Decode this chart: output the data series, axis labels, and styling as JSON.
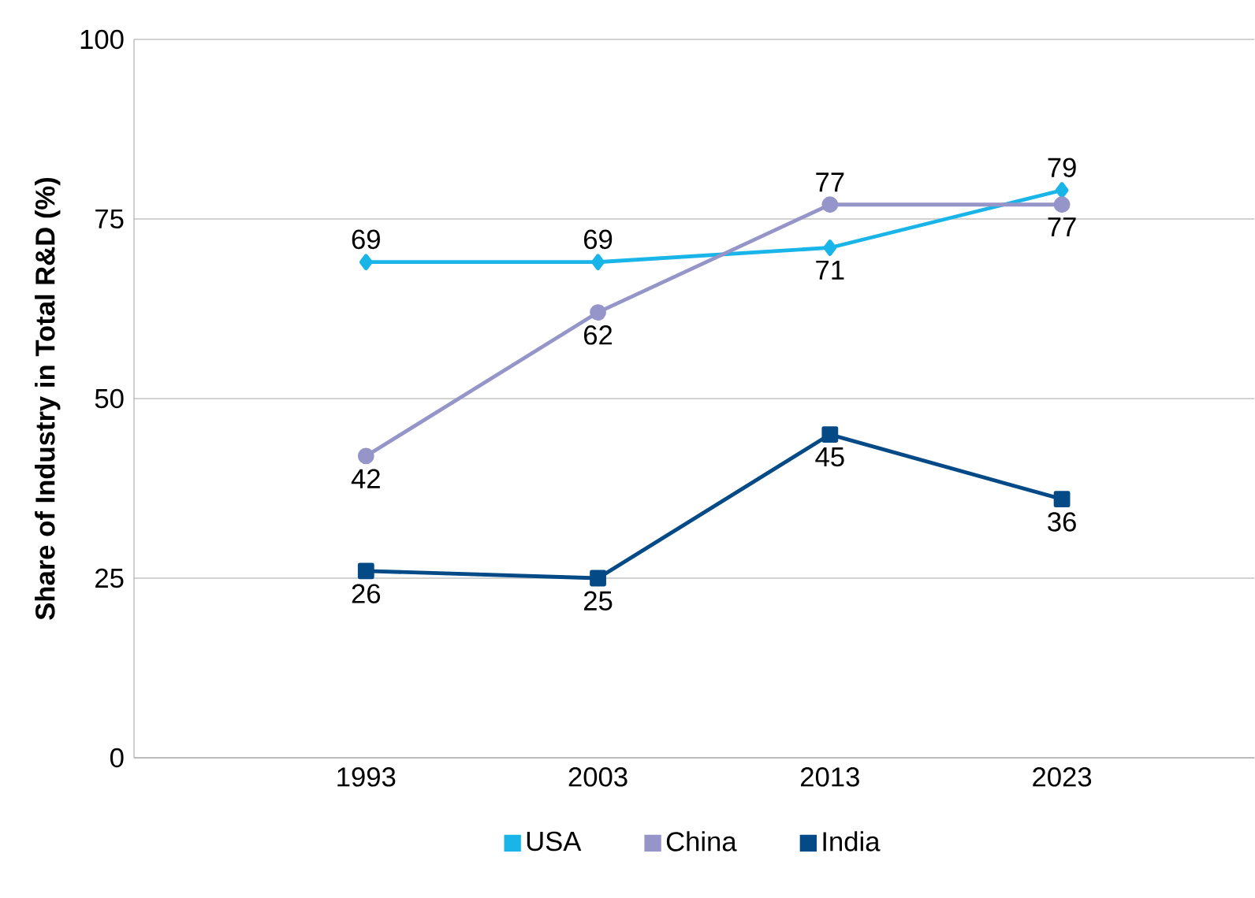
{
  "chart_data": {
    "type": "line",
    "ylabel": "Share of Industry in Total R&D (%)",
    "categories": [
      "1993",
      "2003",
      "2013",
      "2023"
    ],
    "series": [
      {
        "name": "USA",
        "color": "#19b5e8",
        "marker": "diamond",
        "values": [
          69,
          69,
          71,
          79
        ]
      },
      {
        "name": "China",
        "color": "#9595c9",
        "marker": "circle",
        "values": [
          42,
          62,
          77,
          77
        ]
      },
      {
        "name": "India",
        "color": "#034a86",
        "marker": "square",
        "values": [
          26,
          25,
          45,
          36
        ]
      }
    ],
    "ylim": [
      0,
      100
    ],
    "yticks": [
      0,
      25,
      50,
      75,
      100
    ],
    "grid": "y",
    "legend": "bottom",
    "data_labels": true
  }
}
